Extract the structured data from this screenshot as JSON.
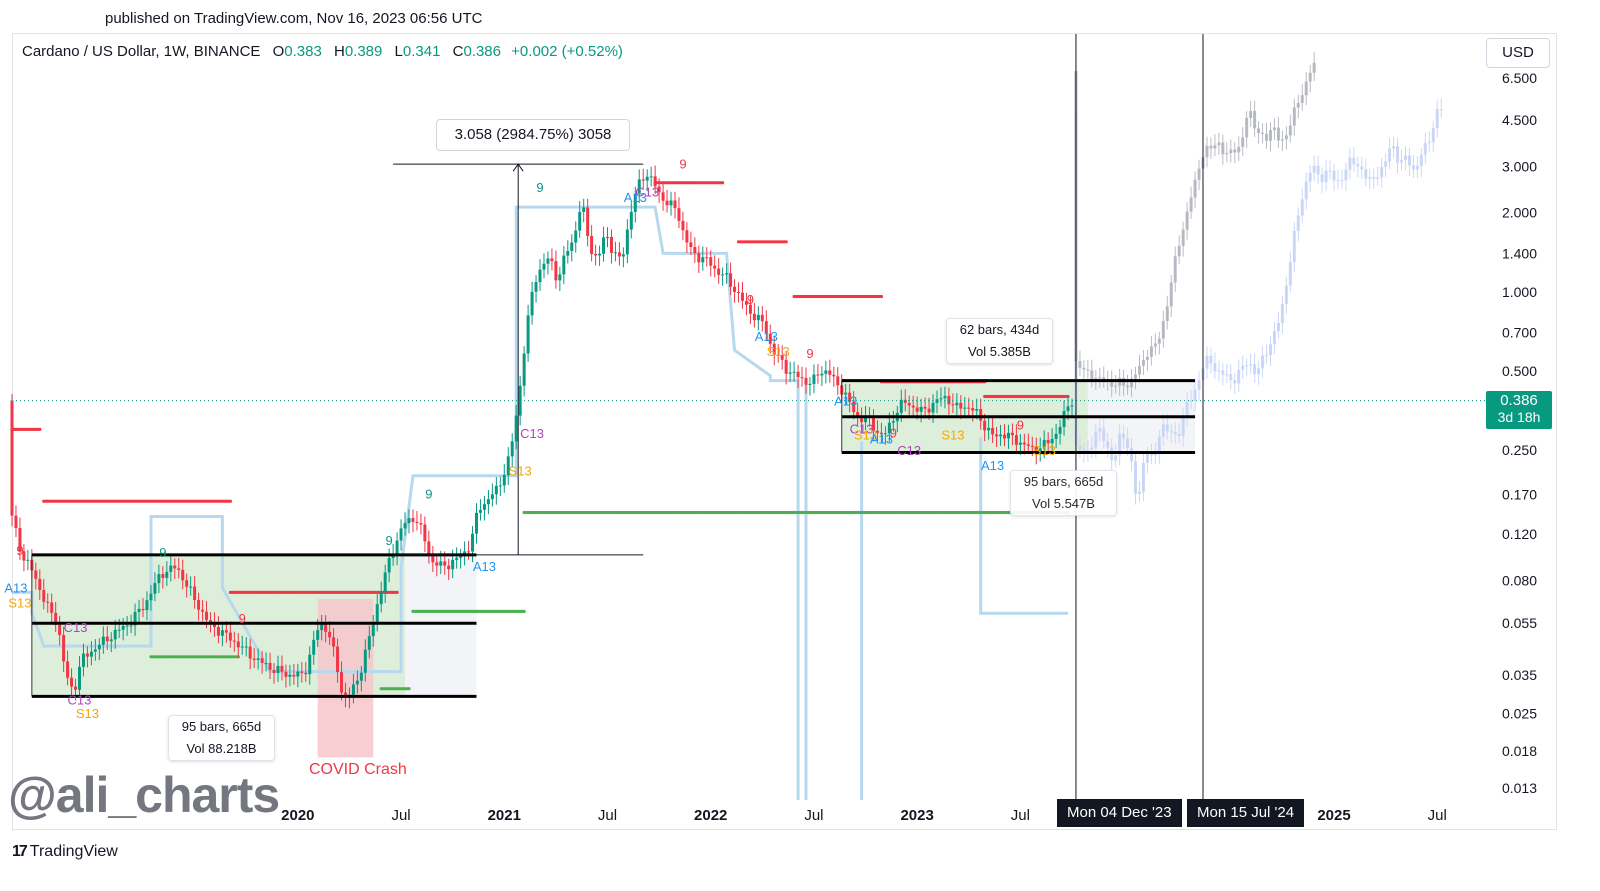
{
  "published": "published on TradingView.com, Nov 16, 2023 06:56 UTC",
  "header": {
    "symbol": "Cardano / US Dollar, 1W, BINANCE",
    "open_label": "O",
    "open": "0.383",
    "high_label": "H",
    "high": "0.389",
    "low_label": "L",
    "low": "0.341",
    "close_label": "C",
    "close": "0.386",
    "change": "+0.002 (+0.52%)"
  },
  "currency_button": "USD",
  "current_price": {
    "value": "0.386",
    "countdown": "3d 18h"
  },
  "colors": {
    "up": "#089981",
    "down": "#f23645",
    "box_fill": "#d7ecd4",
    "projection_gray": "#b2b5be",
    "projection_blue": "#c6d4f5",
    "stop_line": "#b7d9f0",
    "covid_fill": "#f7c6cb"
  },
  "annotations": {
    "measure_top": "3.058 (2984.75%) 3058",
    "range_1_bars": "95 bars, 665d",
    "range_1_vol": "Vol 88.218B",
    "range_2_bars": "62 bars, 434d",
    "range_2_vol": "Vol 5.385B",
    "range_3_bars": "95 bars, 665d",
    "range_3_vol": "Vol 5.547B",
    "covid": "COVID Crash",
    "xlabel_1": "Mon 04 Dec '23",
    "xlabel_2": "Mon 15 Jul '24"
  },
  "td_labels": [
    {
      "text": "9",
      "color": "#f23645",
      "bar": 2,
      "price": 0.1
    },
    {
      "text": "A13",
      "color": "#2196f3",
      "bar": 1,
      "price": 0.072
    },
    {
      "text": "S13",
      "color": "#f7a600",
      "bar": 2,
      "price": 0.063
    },
    {
      "text": "9",
      "color": "#089981",
      "bar": 38,
      "price": 0.098
    },
    {
      "text": "C13",
      "color": "#ab47bc",
      "bar": 16,
      "price": 0.051
    },
    {
      "text": "C13",
      "color": "#ab47bc",
      "bar": 17,
      "price": 0.027
    },
    {
      "text": "S13",
      "color": "#f7a600",
      "bar": 19,
      "price": 0.024
    },
    {
      "text": "9",
      "color": "#f23645",
      "bar": 58,
      "price": 0.055
    },
    {
      "text": "9",
      "color": "#089981",
      "bar": 95,
      "price": 0.109
    },
    {
      "text": "A13",
      "color": "#2196f3",
      "bar": 119,
      "price": 0.087
    },
    {
      "text": "9",
      "color": "#089981",
      "bar": 105,
      "price": 0.164
    },
    {
      "text": "S13",
      "color": "#f7a600",
      "bar": 128,
      "price": 0.2
    },
    {
      "text": "C13",
      "color": "#ab47bc",
      "bar": 131,
      "price": 0.278
    },
    {
      "text": "9",
      "color": "#089981",
      "bar": 133,
      "price": 2.4
    },
    {
      "text": "A13",
      "color": "#2196f3",
      "bar": 157,
      "price": 2.2
    },
    {
      "text": "C13",
      "color": "#ab47bc",
      "bar": 160,
      "price": 2.3
    },
    {
      "text": "9",
      "color": "#f23645",
      "bar": 169,
      "price": 2.95
    },
    {
      "text": "9",
      "color": "#f23645",
      "bar": 186,
      "price": 0.9
    },
    {
      "text": "A13",
      "color": "#2196f3",
      "bar": 190,
      "price": 0.65
    },
    {
      "text": "S13",
      "color": "#f7a600",
      "bar": 193,
      "price": 0.57
    },
    {
      "text": "9",
      "color": "#f23645",
      "bar": 201,
      "price": 0.56
    },
    {
      "text": "A13",
      "color": "#2196f3",
      "bar": 210,
      "price": 0.37
    },
    {
      "text": "C13",
      "color": "#ab47bc",
      "bar": 214,
      "price": 0.29
    },
    {
      "text": "S13",
      "color": "#f7a600",
      "bar": 215,
      "price": 0.275
    },
    {
      "text": "A13",
      "color": "#2196f3",
      "bar": 219,
      "price": 0.265
    },
    {
      "text": "9",
      "color": "#f23645",
      "bar": 222,
      "price": 0.28
    },
    {
      "text": "C13",
      "color": "#ab47bc",
      "bar": 226,
      "price": 0.24
    },
    {
      "text": "S13",
      "color": "#f7a600",
      "bar": 237,
      "price": 0.275
    },
    {
      "text": "9",
      "color": "#f23645",
      "bar": 254,
      "price": 0.3
    },
    {
      "text": "S13",
      "color": "#f7a600",
      "bar": 260,
      "price": 0.24
    },
    {
      "text": "A13",
      "color": "#2196f3",
      "bar": 247,
      "price": 0.21
    }
  ],
  "chart_data": {
    "type": "candlestick",
    "title": "Cardano / US Dollar, 1W, BINANCE",
    "y_scale": "log",
    "y_ticks": [
      6.5,
      4.5,
      3.0,
      2.0,
      1.4,
      1.0,
      0.7,
      0.5,
      0.25,
      0.17,
      0.12,
      0.08,
      0.055,
      0.035,
      0.025,
      0.018,
      0.013
    ],
    "y_tick_labels": [
      "6.500",
      "4.500",
      "3.000",
      "2.000",
      "1.400",
      "1.000",
      "0.700",
      "0.500",
      "0.250",
      "0.170",
      "0.120",
      "0.080",
      "0.055",
      "0.035",
      "0.025",
      "0.018",
      "0.013"
    ],
    "x_labels": [
      {
        "text": "2020",
        "bar": 72,
        "bold": true
      },
      {
        "text": "Jul",
        "bar": 98,
        "bold": false
      },
      {
        "text": "2021",
        "bar": 124,
        "bold": true
      },
      {
        "text": "Jul",
        "bar": 150,
        "bold": false
      },
      {
        "text": "2022",
        "bar": 176,
        "bold": true
      },
      {
        "text": "Jul",
        "bar": 202,
        "bold": false
      },
      {
        "text": "2023",
        "bar": 228,
        "bold": true
      },
      {
        "text": "Jul",
        "bar": 254,
        "bold": false
      },
      {
        "text": "2025",
        "bar": 333,
        "bold": true
      },
      {
        "text": "Jul",
        "bar": 359,
        "bold": false
      }
    ],
    "anchors": [
      [
        0,
        0.15
      ],
      [
        3,
        0.1
      ],
      [
        6,
        0.085
      ],
      [
        9,
        0.065
      ],
      [
        12,
        0.055
      ],
      [
        14,
        0.035
      ],
      [
        16,
        0.03
      ],
      [
        18,
        0.04
      ],
      [
        22,
        0.045
      ],
      [
        26,
        0.05
      ],
      [
        30,
        0.055
      ],
      [
        34,
        0.065
      ],
      [
        38,
        0.085
      ],
      [
        42,
        0.09
      ],
      [
        46,
        0.07
      ],
      [
        50,
        0.055
      ],
      [
        54,
        0.05
      ],
      [
        58,
        0.045
      ],
      [
        62,
        0.04
      ],
      [
        66,
        0.037
      ],
      [
        70,
        0.035
      ],
      [
        74,
        0.035
      ],
      [
        78,
        0.055
      ],
      [
        80,
        0.052
      ],
      [
        82,
        0.04
      ],
      [
        84,
        0.028
      ],
      [
        86,
        0.03
      ],
      [
        88,
        0.035
      ],
      [
        90,
        0.045
      ],
      [
        93,
        0.07
      ],
      [
        96,
        0.1
      ],
      [
        99,
        0.13
      ],
      [
        102,
        0.14
      ],
      [
        104,
        0.12
      ],
      [
        106,
        0.095
      ],
      [
        109,
        0.09
      ],
      [
        112,
        0.095
      ],
      [
        114,
        0.1
      ],
      [
        116,
        0.11
      ],
      [
        118,
        0.15
      ],
      [
        120,
        0.16
      ],
      [
        123,
        0.18
      ],
      [
        126,
        0.24
      ],
      [
        128,
        0.38
      ],
      [
        130,
        0.7
      ],
      [
        132,
        1.1
      ],
      [
        134,
        1.25
      ],
      [
        136,
        1.35
      ],
      [
        138,
        1.1
      ],
      [
        140,
        1.4
      ],
      [
        142,
        1.6
      ],
      [
        144,
        2.2
      ],
      [
        146,
        1.5
      ],
      [
        148,
        1.3
      ],
      [
        150,
        1.7
      ],
      [
        152,
        1.4
      ],
      [
        154,
        1.3
      ],
      [
        156,
        1.9
      ],
      [
        158,
        2.5
      ],
      [
        160,
        2.85
      ],
      [
        162,
        2.6
      ],
      [
        164,
        2.3
      ],
      [
        166,
        2.15
      ],
      [
        168,
        2.05
      ],
      [
        170,
        1.6
      ],
      [
        172,
        1.4
      ],
      [
        174,
        1.35
      ],
      [
        176,
        1.3
      ],
      [
        178,
        1.2
      ],
      [
        180,
        1.15
      ],
      [
        182,
        1.05
      ],
      [
        184,
        0.95
      ],
      [
        186,
        0.85
      ],
      [
        188,
        0.8
      ],
      [
        190,
        0.75
      ],
      [
        192,
        0.6
      ],
      [
        194,
        0.55
      ],
      [
        196,
        0.5
      ],
      [
        198,
        0.48
      ],
      [
        200,
        0.46
      ],
      [
        202,
        0.45
      ],
      [
        204,
        0.5
      ],
      [
        206,
        0.5
      ],
      [
        208,
        0.45
      ],
      [
        210,
        0.42
      ],
      [
        212,
        0.36
      ],
      [
        214,
        0.33
      ],
      [
        216,
        0.33
      ],
      [
        218,
        0.3
      ],
      [
        220,
        0.28
      ],
      [
        222,
        0.32
      ],
      [
        224,
        0.37
      ],
      [
        226,
        0.38
      ],
      [
        228,
        0.36
      ],
      [
        230,
        0.35
      ],
      [
        232,
        0.37
      ],
      [
        234,
        0.39
      ],
      [
        236,
        0.4
      ],
      [
        238,
        0.36
      ],
      [
        240,
        0.37
      ],
      [
        242,
        0.36
      ],
      [
        244,
        0.34
      ],
      [
        246,
        0.3
      ],
      [
        248,
        0.28
      ],
      [
        250,
        0.29
      ],
      [
        252,
        0.28
      ],
      [
        254,
        0.27
      ],
      [
        256,
        0.26
      ],
      [
        258,
        0.25
      ],
      [
        260,
        0.26
      ],
      [
        262,
        0.27
      ],
      [
        264,
        0.3
      ],
      [
        266,
        0.35
      ],
      [
        267,
        0.386
      ]
    ],
    "projection_gray_anchors": [
      [
        268,
        0.55
      ],
      [
        270,
        0.5
      ],
      [
        272,
        0.5
      ],
      [
        274,
        0.45
      ],
      [
        276,
        0.48
      ],
      [
        278,
        0.43
      ],
      [
        280,
        0.46
      ],
      [
        282,
        0.44
      ],
      [
        284,
        0.5
      ],
      [
        286,
        0.58
      ],
      [
        288,
        0.6
      ],
      [
        290,
        0.72
      ],
      [
        292,
        0.95
      ],
      [
        294,
        1.5
      ],
      [
        296,
        1.8
      ],
      [
        298,
        2.5
      ],
      [
        300,
        3.2
      ],
      [
        302,
        3.5
      ],
      [
        304,
        3.8
      ],
      [
        306,
        3.2
      ],
      [
        308,
        3.6
      ],
      [
        310,
        3.4
      ],
      [
        312,
        5.2
      ],
      [
        314,
        4.0
      ],
      [
        316,
        3.8
      ],
      [
        318,
        4.3
      ],
      [
        320,
        3.6
      ],
      [
        322,
        4.2
      ],
      [
        324,
        5.0
      ],
      [
        326,
        6.0
      ],
      [
        328,
        7.2
      ]
    ],
    "projection_blue_anchors": [
      [
        268,
        0.26
      ],
      [
        271,
        0.24
      ],
      [
        274,
        0.3
      ],
      [
        276,
        0.27
      ],
      [
        278,
        0.22
      ],
      [
        280,
        0.3
      ],
      [
        282,
        0.25
      ],
      [
        284,
        0.15
      ],
      [
        286,
        0.26
      ],
      [
        288,
        0.22
      ],
      [
        290,
        0.32
      ],
      [
        292,
        0.29
      ],
      [
        294,
        0.28
      ],
      [
        296,
        0.36
      ],
      [
        298,
        0.4
      ],
      [
        300,
        0.5
      ],
      [
        302,
        0.56
      ],
      [
        304,
        0.5
      ],
      [
        306,
        0.48
      ],
      [
        308,
        0.46
      ],
      [
        310,
        0.5
      ],
      [
        312,
        0.55
      ],
      [
        314,
        0.48
      ],
      [
        316,
        0.58
      ],
      [
        318,
        0.66
      ],
      [
        320,
        0.8
      ],
      [
        322,
        1.2
      ],
      [
        324,
        1.8
      ],
      [
        326,
        2.5
      ],
      [
        328,
        3.0
      ],
      [
        330,
        2.7
      ],
      [
        332,
        2.9
      ],
      [
        334,
        2.6
      ],
      [
        336,
        2.8
      ],
      [
        338,
        3.2
      ],
      [
        340,
        3.0
      ],
      [
        342,
        2.6
      ],
      [
        344,
        2.8
      ],
      [
        346,
        2.9
      ],
      [
        348,
        3.8
      ],
      [
        350,
        3.0
      ],
      [
        352,
        3.3
      ],
      [
        354,
        2.8
      ],
      [
        356,
        3.5
      ],
      [
        358,
        4.0
      ],
      [
        360,
        5.0
      ]
    ],
    "ranges": [
      {
        "bar_start": 5,
        "bar_end": 117,
        "top": 0.1,
        "mid": 0.055,
        "bottom": 0.029,
        "shade": true
      },
      {
        "bar_start": 209,
        "bar_end": 298,
        "top": 0.46,
        "mid": 0.335,
        "bottom": 0.245,
        "shade": true
      }
    ],
    "measure": {
      "bar_start": 96,
      "bar_end": 159,
      "low": 0.1,
      "high": 3.058
    },
    "supply_dots": [
      {
        "bar_start": 0,
        "bar_end": 7,
        "price": 0.3
      },
      {
        "bar_start": 8,
        "bar_end": 55,
        "price": 0.16
      },
      {
        "bar_start": 55,
        "bar_end": 97,
        "price": 0.072
      },
      {
        "bar_start": 162,
        "bar_end": 179,
        "price": 2.6
      },
      {
        "bar_start": 183,
        "bar_end": 195,
        "price": 1.55
      },
      {
        "bar_start": 197,
        "bar_end": 219,
        "price": 0.96
      },
      {
        "bar_start": 219,
        "bar_end": 245,
        "price": 0.455
      },
      {
        "bar_start": 245,
        "bar_end": 266,
        "price": 0.4
      }
    ],
    "demand_dots": [
      {
        "bar_start": 35,
        "bar_end": 57,
        "price": 0.041
      },
      {
        "bar_start": 93,
        "bar_end": 100,
        "price": 0.031
      },
      {
        "bar_start": 101,
        "bar_end": 129,
        "price": 0.061
      },
      {
        "bar_start": 129,
        "bar_end": 266,
        "price": 0.145
      }
    ],
    "stop_lines": [
      {
        "points": [
          [
            0,
            0.072
          ],
          [
            5,
            0.072
          ],
          [
            5,
            0.06
          ],
          [
            8,
            0.045
          ],
          [
            35,
            0.045
          ],
          [
            35,
            0.14
          ],
          [
            53,
            0.14
          ],
          [
            53,
            0.075
          ],
          [
            65,
            0.036
          ],
          [
            98,
            0.036
          ],
          [
            98,
            0.09
          ],
          [
            101,
            0.2
          ],
          [
            127,
            0.2
          ],
          [
            127,
            2.1
          ],
          [
            162,
            2.1
          ],
          [
            162,
            2.1
          ],
          [
            164,
            1.4
          ],
          [
            180,
            1.4
          ],
          [
            182,
            0.6
          ],
          [
            191,
            0.48
          ],
          [
            191,
            0.46
          ],
          [
            198,
            0.46
          ],
          [
            198,
            0.01
          ]
        ]
      },
      {
        "points": [
          [
            200,
            0.46
          ],
          [
            200,
            0.01
          ]
        ]
      },
      {
        "points": [
          [
            214,
            0.27
          ],
          [
            214,
            0.01
          ]
        ]
      },
      {
        "points": [
          [
            244,
            0.28
          ],
          [
            244,
            0.06
          ],
          [
            266,
            0.06
          ]
        ]
      }
    ],
    "covid_window": {
      "bar_start": 77,
      "bar_end": 91,
      "low": 0.017,
      "high": 0.068
    },
    "vlines": [
      {
        "bar": 268,
        "label": "Mon 04 Dec '23"
      },
      {
        "bar": 300,
        "label": "Mon 15 Jul '24"
      }
    ],
    "current_price_line": 0.386
  }
}
